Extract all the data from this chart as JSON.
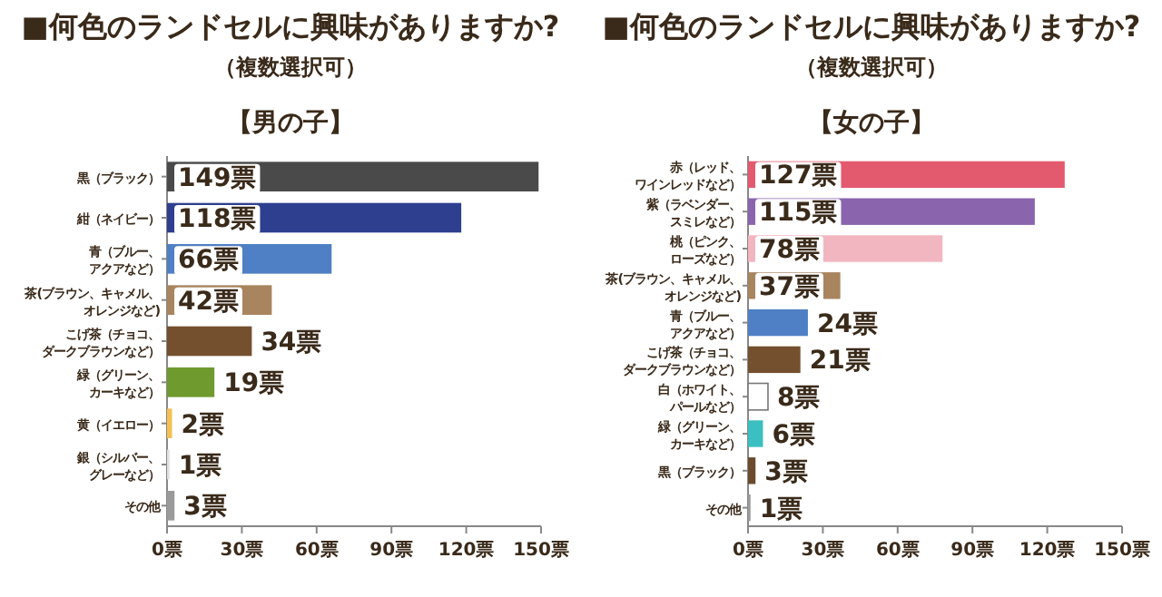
{
  "chart_data": [
    {
      "type": "bar",
      "orientation": "horizontal",
      "title": "■何色のランドセルに興味がありますか?",
      "subtitle": "（複数選択可）",
      "annotations": [
        "【男の子】"
      ],
      "categories": [
        "黒（ブラック）",
        "紺（ネイビー）",
        "青（ブルー、アクアなど）",
        "茶(ブラウン、キャメル、オレンジなど)",
        "こげ茶（チョコ、ダークブラウンなど）",
        "緑（グリーン、カーキなど）",
        "黄（イエロー）",
        "銀（シルバー、グレーなど）",
        "その他"
      ],
      "values": [
        149,
        118,
        66,
        42,
        34,
        19,
        2,
        1,
        3
      ],
      "colors": [
        "#4a4a4a",
        "#2e3f8f",
        "#4f7fc4",
        "#a8845f",
        "#74502e",
        "#6f9a2e",
        "#f5c050",
        "#e0e0e0",
        "#9a9a9a"
      ],
      "value_labels": [
        "149票",
        "118票",
        "66票",
        "42票",
        "34票",
        "19票",
        "2票",
        "1票",
        "3票"
      ],
      "xlim": [
        0,
        150
      ],
      "xticks": [
        {
          "value": 0,
          "label": "0票"
        },
        {
          "value": 30,
          "label": "30票"
        },
        {
          "value": 60,
          "label": "60票"
        },
        {
          "value": 90,
          "label": "90票"
        },
        {
          "value": 120,
          "label": "120票"
        },
        {
          "value": 150,
          "label": "150票"
        }
      ]
    },
    {
      "type": "bar",
      "orientation": "horizontal",
      "title": "■何色のランドセルに興味がありますか?",
      "subtitle": "（複数選択可）",
      "annotations": [
        "【女の子】"
      ],
      "categories": [
        "赤（レッド、ワインレッドなど）",
        "紫（ラベンダー、スミレなど）",
        "桃（ピンク、ローズなど）",
        "茶(ブラウン、キャメル、オレンジなど)",
        "青（ブルー、アクアなど）",
        "こげ茶（チョコ、ダークブラウンなど）",
        "白（ホワイト、パールなど）",
        "緑（グリーン、カーキなど）",
        "黒（ブラック）",
        "その他"
      ],
      "values": [
        127,
        115,
        78,
        37,
        24,
        21,
        8,
        6,
        3,
        1
      ],
      "colors": [
        "#e35a6e",
        "#8a65ad",
        "#f2b6c0",
        "#a8845f",
        "#4f7fc4",
        "#74502e",
        "#ffffff",
        "#3bbfc0",
        "#6b4a2e",
        "#9a9a9a"
      ],
      "value_labels": [
        "127票",
        "115票",
        "78票",
        "37票",
        "24票",
        "21票",
        "8票",
        "6票",
        "3票",
        "1票"
      ],
      "xlim": [
        0,
        150
      ],
      "xticks": [
        {
          "value": 0,
          "label": "0票"
        },
        {
          "value": 30,
          "label": "30票"
        },
        {
          "value": 60,
          "label": "60票"
        },
        {
          "value": 90,
          "label": "90票"
        },
        {
          "value": 120,
          "label": "120票"
        },
        {
          "value": 150,
          "label": "150票"
        }
      ]
    }
  ]
}
